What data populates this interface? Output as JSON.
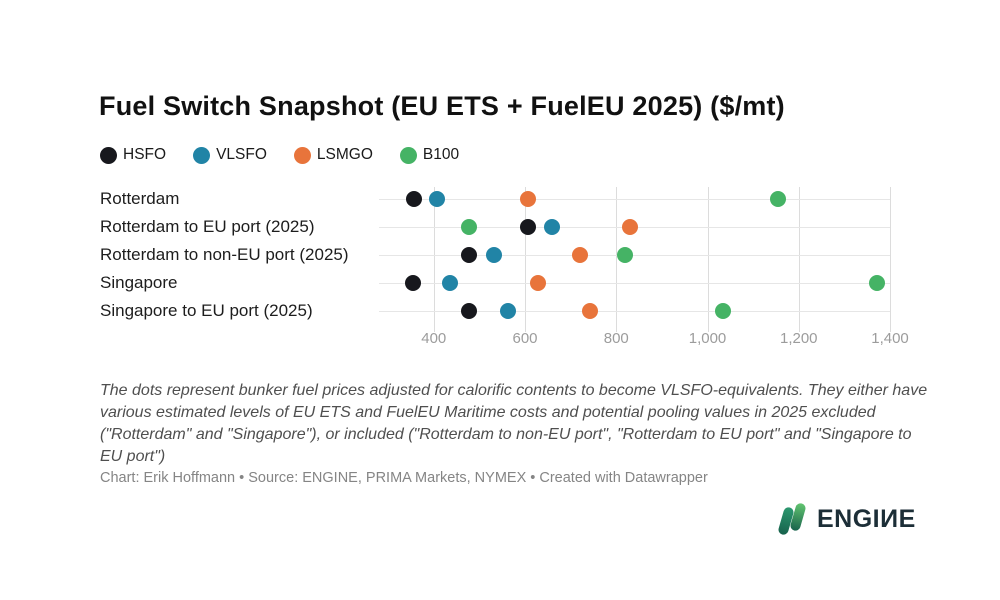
{
  "title": "Fuel Switch Snapshot (EU ETS + FuelEU 2025) ($/mt)",
  "chart_data": {
    "type": "scatter",
    "variant": "horizontal-dot-plot",
    "categories": [
      "Rotterdam",
      "Rotterdam to EU port (2025)",
      "Rotterdam to non-EU port (2025)",
      "Singapore",
      "Singapore to EU port (2025)"
    ],
    "series": [
      {
        "name": "HSFO",
        "color": "#17181d",
        "values": [
          357,
          607,
          478,
          355,
          478
        ]
      },
      {
        "name": "VLSFO",
        "color": "#2184a6",
        "values": [
          408,
          660,
          532,
          435,
          562
        ]
      },
      {
        "name": "LSMGO",
        "color": "#e8743b",
        "values": [
          606,
          831,
          720,
          629,
          742
        ]
      },
      {
        "name": "B100",
        "color": "#45b365",
        "values": [
          1155,
          477,
          820,
          1371,
          1035
        ]
      }
    ],
    "xticks": [
      400,
      600,
      800,
      1000,
      1200,
      1400
    ],
    "xtick_labels": [
      "400",
      "600",
      "800",
      "1,000",
      "1,200",
      "1,400"
    ],
    "xlim": [
      280,
      1400
    ],
    "grid": true,
    "legend_position": "top",
    "unit": "$/mt"
  },
  "note": "The dots represent bunker fuel prices adjusted for calorific contents to become VLSFO-equivalents. They either have various estimated levels of EU ETS and FuelEU Maritime costs and potential pooling values in 2025 excluded (\"Rotterdam\" and \"Singapore\"), or included (\"Rotterdam to non-EU port\", \"Rotterdam to EU port\" and \"Singapore to EU port\")",
  "credit": "Chart: Erik Hoffmann • Source: ENGINE, PRIMA Markets, NYMEX • Created with Datawrapper",
  "logo": {
    "text": "ENGIИE"
  }
}
